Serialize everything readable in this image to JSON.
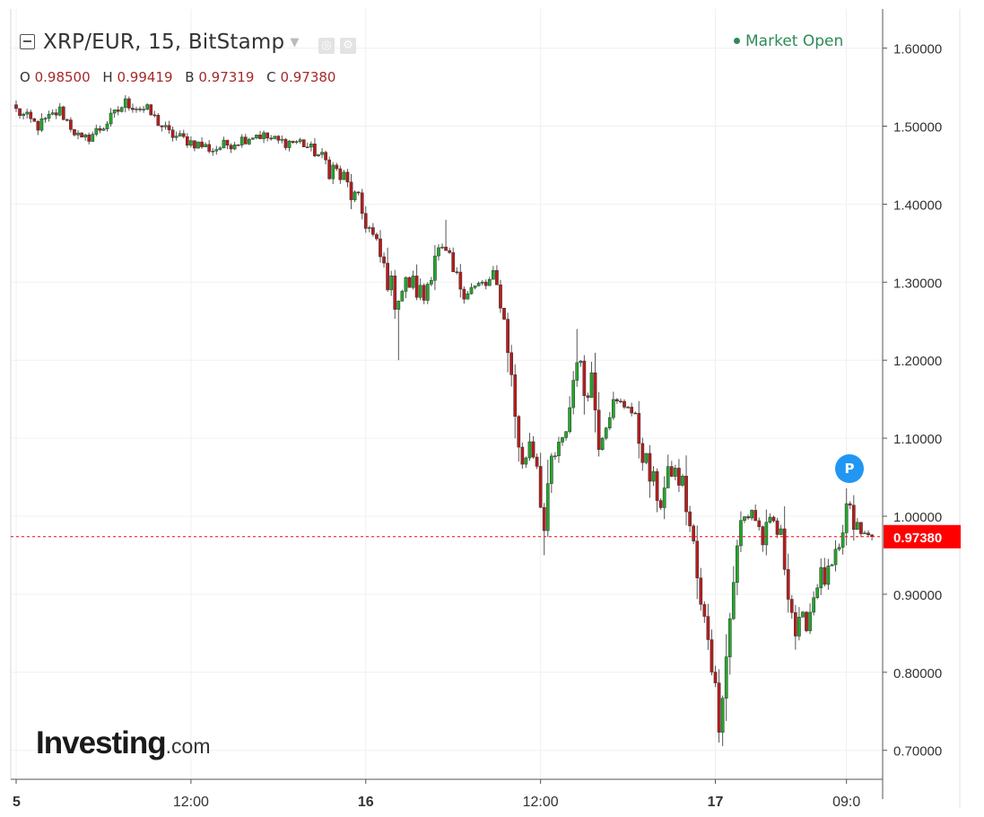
{
  "header": {
    "title": "XRP/EUR, 15, BitStamp",
    "dropdown_icon": "chevron-down-icon",
    "tool_icons": [
      "settings-icon",
      "gear-icon"
    ],
    "ohlc": [
      {
        "label": "O",
        "value": "0.98500"
      },
      {
        "label": "H",
        "value": "0.99419"
      },
      {
        "label": "B",
        "value": "0.97319"
      },
      {
        "label": "C",
        "value": "0.97380"
      }
    ],
    "market_status": "Market Open"
  },
  "logo": {
    "brand": "Investing",
    "suffix": ".com"
  },
  "badge": {
    "text": "P"
  },
  "colors": {
    "up": "#22a82b",
    "down": "#b71c1c",
    "last_price": "#ff0000",
    "market_open": "#2e8b57",
    "badge": "#2196f3"
  },
  "chart_data": {
    "type": "candlestick",
    "title": "XRP/EUR, 15, BitStamp",
    "interval_minutes": 15,
    "grid": true,
    "y_axis_position": "right",
    "ylim": [
      0.65,
      1.65
    ],
    "yticks": [
      0.7,
      0.8,
      0.9,
      1.0,
      1.1,
      1.2,
      1.3,
      1.4,
      1.5,
      1.6
    ],
    "ytick_labels": [
      "0.70000",
      "0.80000",
      "0.90000",
      "1.00000",
      "1.10000",
      "1.20000",
      "1.30000",
      "1.40000",
      "1.50000",
      "1.60000"
    ],
    "xticks": [
      {
        "label": "5",
        "bar_index": 0
      },
      {
        "label": "12:00",
        "bar_index": 48
      },
      {
        "label": "16",
        "bar_index": 96
      },
      {
        "label": "12:00",
        "bar_index": 144
      },
      {
        "label": "17",
        "bar_index": 192
      },
      {
        "label": "09:0",
        "bar_index": 228
      }
    ],
    "bars_total": 236,
    "last_price": 0.9738,
    "last_price_label": "0.97380",
    "price_path": [
      [
        0,
        1.52
      ],
      [
        6,
        1.5
      ],
      [
        12,
        1.52
      ],
      [
        18,
        1.48
      ],
      [
        24,
        1.5
      ],
      [
        30,
        1.53
      ],
      [
        36,
        1.52
      ],
      [
        42,
        1.49
      ],
      [
        48,
        1.48
      ],
      [
        54,
        1.47
      ],
      [
        60,
        1.48
      ],
      [
        66,
        1.49
      ],
      [
        72,
        1.48
      ],
      [
        78,
        1.48
      ],
      [
        84,
        1.46
      ],
      [
        90,
        1.43
      ],
      [
        96,
        1.38
      ],
      [
        100,
        1.33
      ],
      [
        104,
        1.28
      ],
      [
        108,
        1.3
      ],
      [
        112,
        1.28
      ],
      [
        115,
        1.34
      ],
      [
        118,
        1.33
      ],
      [
        121,
        1.3
      ],
      [
        126,
        1.29
      ],
      [
        131,
        1.3
      ],
      [
        133,
        1.28
      ],
      [
        135,
        1.22
      ],
      [
        137,
        1.13
      ],
      [
        139,
        1.06
      ],
      [
        141,
        1.1
      ],
      [
        143,
        1.07
      ],
      [
        145,
        0.98
      ],
      [
        147,
        1.07
      ],
      [
        150,
        1.09
      ],
      [
        152,
        1.14
      ],
      [
        154,
        1.21
      ],
      [
        156,
        1.16
      ],
      [
        158,
        1.18
      ],
      [
        160,
        1.1
      ],
      [
        163,
        1.14
      ],
      [
        166,
        1.14
      ],
      [
        168,
        1.15
      ],
      [
        171,
        1.1
      ],
      [
        174,
        1.05
      ],
      [
        177,
        1.02
      ],
      [
        180,
        1.06
      ],
      [
        183,
        1.04
      ],
      [
        186,
        0.96
      ],
      [
        188,
        0.88
      ],
      [
        190,
        0.85
      ],
      [
        193,
        0.74
      ],
      [
        195,
        0.82
      ],
      [
        197,
        0.92
      ],
      [
        199,
        0.99
      ],
      [
        202,
        1.01
      ],
      [
        205,
        0.97
      ],
      [
        208,
        0.99
      ],
      [
        210,
        0.97
      ],
      [
        212,
        0.91
      ],
      [
        214,
        0.85
      ],
      [
        216,
        0.86
      ],
      [
        218,
        0.88
      ],
      [
        220,
        0.92
      ],
      [
        223,
        0.92
      ],
      [
        226,
        0.95
      ],
      [
        228,
        1.01
      ],
      [
        230,
        0.99
      ],
      [
        232,
        0.974
      ]
    ],
    "notable_wicks": [
      {
        "bar": 105,
        "low": 1.2
      },
      {
        "bar": 145,
        "low": 0.95
      },
      {
        "bar": 193,
        "low": 0.71
      },
      {
        "bar": 154,
        "high": 1.24
      },
      {
        "bar": 118,
        "high": 1.38
      }
    ]
  }
}
